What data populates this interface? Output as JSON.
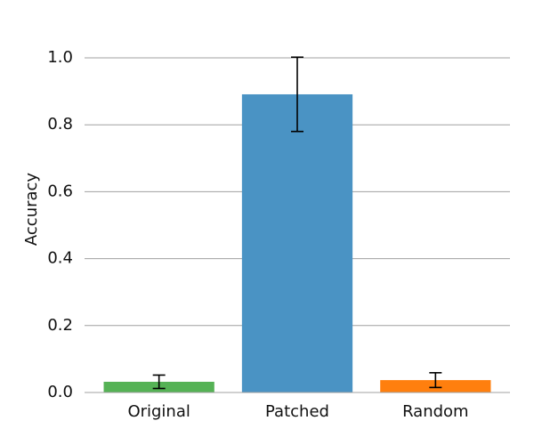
{
  "chart_data": {
    "type": "bar",
    "ylabel": "Accuracy",
    "categories": [
      "Original",
      "Patched",
      "Random"
    ],
    "values": [
      0.032,
      0.891,
      0.037
    ],
    "errors": [
      0.02,
      0.111,
      0.022
    ],
    "colors": [
      "#55b255",
      "#4a93c4",
      "#ff7f0e"
    ],
    "ylim": [
      0,
      1.1
    ],
    "yticks": [
      {
        "value": 0,
        "label": "0.0"
      },
      0.2,
      0.4,
      0.6,
      0.8,
      {
        "value": 1,
        "label": "1.0"
      }
    ],
    "grid": true
  }
}
